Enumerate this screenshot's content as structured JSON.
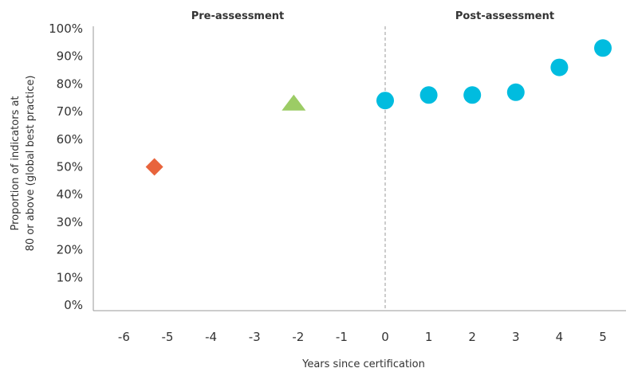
{
  "chart_data": {
    "type": "scatter",
    "xlabel": "Years since certification",
    "ylabel_lines": [
      "Proportion of indicators at",
      "80 or above (global best practice)"
    ],
    "section_labels": {
      "pre": "Pre-assessment",
      "post": "Post-assessment"
    },
    "x_categories": [
      "-6",
      "-5",
      "-4",
      "-3",
      "-2",
      "-1",
      "0",
      "1",
      "2",
      "3",
      "4",
      "5"
    ],
    "y_ticks": [
      "0%",
      "10%",
      "20%",
      "30%",
      "40%",
      "50%",
      "60%",
      "70%",
      "80%",
      "90%",
      "100%"
    ],
    "ylim": [
      0,
      100
    ],
    "divider_at": 0,
    "series": [
      {
        "marker": "diamond",
        "color": "#e8643c",
        "points": [
          {
            "x": -5.3,
            "y": 50
          }
        ]
      },
      {
        "marker": "triangle",
        "color": "#9ccc65",
        "points": [
          {
            "x": -2.1,
            "y": 73
          }
        ]
      },
      {
        "marker": "circle",
        "color": "#00bcdf",
        "points": [
          {
            "x": 0,
            "y": 74
          },
          {
            "x": 1,
            "y": 76
          },
          {
            "x": 2,
            "y": 76
          },
          {
            "x": 3,
            "y": 77
          },
          {
            "x": 4,
            "y": 86
          },
          {
            "x": 5,
            "y": 93
          }
        ]
      }
    ],
    "grid": false,
    "legend": "none"
  }
}
